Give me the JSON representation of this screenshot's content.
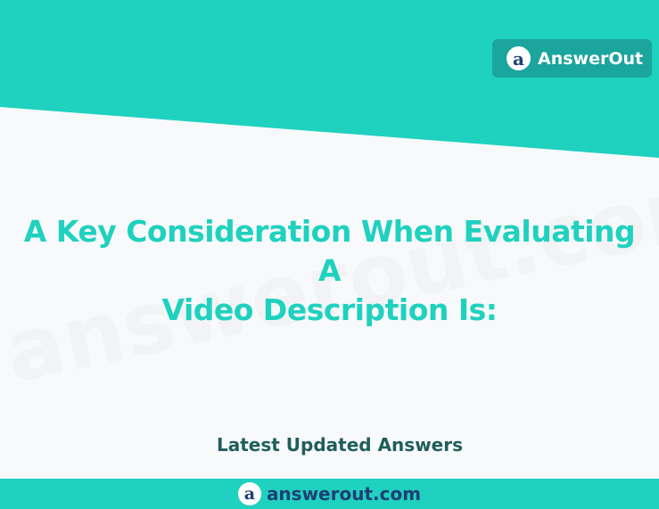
{
  "header": {
    "brand_name": "AnswerOut",
    "logo_glyph": "a",
    "logo_icon": "answerout-logo-icon"
  },
  "watermark": {
    "text": "answerout.com"
  },
  "main": {
    "title_line1": "A Key Consideration When Evaluating A",
    "title_line2": "Video Description Is:"
  },
  "subtitle": "Latest Updated Answers",
  "footer": {
    "site": "answerout.com",
    "logo_glyph": "a"
  },
  "colors": {
    "teal": "#1fd1bf",
    "badge_teal": "#1aa59d",
    "navy": "#1f3f73",
    "dark_teal_text": "#1f5e5b",
    "background": "#f8f9fb"
  }
}
